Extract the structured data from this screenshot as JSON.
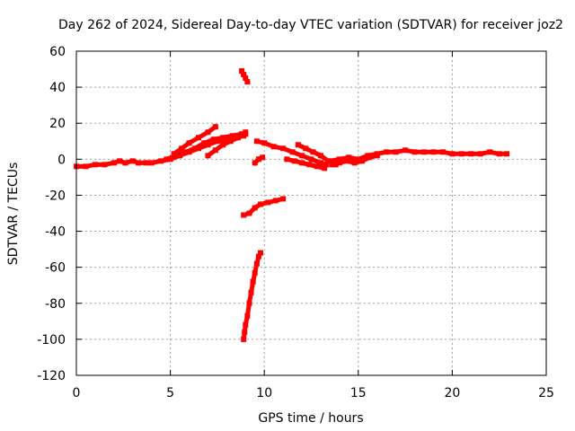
{
  "chart_data": {
    "type": "scatter",
    "title": "Day 262 of 2024, Sidereal Day-to-day VTEC variation (SDTVAR) for receiver joz2",
    "xlabel": "GPS time / hours",
    "ylabel": "SDTVAR / TECUs",
    "xlim": [
      0,
      25
    ],
    "ylim": [
      -120,
      60
    ],
    "xticks": [
      0,
      5,
      10,
      15,
      20,
      25
    ],
    "yticks": [
      -120,
      -100,
      -80,
      -60,
      -40,
      -20,
      0,
      20,
      40,
      60
    ],
    "grid": true,
    "series_color": "#ff0000",
    "series": [
      {
        "name": "baseline-early",
        "points": [
          [
            0.0,
            -4
          ],
          [
            0.5,
            -4
          ],
          [
            1.0,
            -3
          ],
          [
            1.5,
            -3
          ],
          [
            2.0,
            -2
          ],
          [
            2.3,
            -1
          ],
          [
            2.6,
            -2
          ],
          [
            3.0,
            -1
          ],
          [
            3.3,
            -2
          ],
          [
            3.7,
            -2
          ],
          [
            4.0,
            -2
          ],
          [
            4.5,
            -1
          ],
          [
            5.0,
            0
          ],
          [
            5.5,
            2
          ],
          [
            6.0,
            4
          ],
          [
            6.5,
            6
          ],
          [
            7.0,
            8
          ],
          [
            7.5,
            10
          ],
          [
            8.0,
            11
          ],
          [
            8.5,
            12
          ],
          [
            8.9,
            13
          ]
        ]
      },
      {
        "name": "rising-arc-upper",
        "points": [
          [
            5.2,
            3
          ],
          [
            5.6,
            6
          ],
          [
            6.0,
            9
          ],
          [
            6.5,
            12
          ],
          [
            7.0,
            15
          ],
          [
            7.4,
            18
          ]
        ]
      },
      {
        "name": "rising-arc-mid",
        "points": [
          [
            4.8,
            0
          ],
          [
            5.3,
            2
          ],
          [
            5.8,
            4
          ],
          [
            6.3,
            6
          ],
          [
            6.8,
            9
          ],
          [
            7.3,
            11
          ],
          [
            7.8,
            12
          ],
          [
            8.3,
            13
          ],
          [
            8.8,
            14
          ],
          [
            9.0,
            15
          ]
        ]
      },
      {
        "name": "rising-arc-lower",
        "points": [
          [
            7.0,
            2
          ],
          [
            7.4,
            5
          ],
          [
            7.8,
            8
          ],
          [
            8.2,
            10
          ],
          [
            8.6,
            12
          ],
          [
            9.0,
            14
          ]
        ]
      },
      {
        "name": "high-segment",
        "points": [
          [
            8.8,
            49
          ],
          [
            8.9,
            47
          ],
          [
            9.0,
            45
          ],
          [
            9.1,
            43
          ]
        ]
      },
      {
        "name": "post-gap-decline",
        "points": [
          [
            9.6,
            10
          ],
          [
            10.0,
            9
          ],
          [
            10.5,
            7
          ],
          [
            11.0,
            6
          ],
          [
            11.5,
            4
          ],
          [
            12.0,
            2
          ],
          [
            12.5,
            0
          ],
          [
            13.0,
            -2
          ],
          [
            13.3,
            -3
          ]
        ]
      },
      {
        "name": "post-gap-lower",
        "points": [
          [
            11.2,
            0
          ],
          [
            11.6,
            -1
          ],
          [
            12.0,
            -2
          ],
          [
            12.4,
            -3
          ],
          [
            12.8,
            -4
          ],
          [
            13.2,
            -5
          ]
        ]
      },
      {
        "name": "midnight-cluster",
        "points": [
          [
            11.8,
            8
          ],
          [
            12.2,
            6
          ],
          [
            12.6,
            4
          ],
          [
            13.0,
            2
          ],
          [
            13.4,
            -1
          ],
          [
            13.8,
            -3
          ]
        ]
      },
      {
        "name": "small-positive-dash",
        "points": [
          [
            9.5,
            -2
          ],
          [
            9.7,
            0
          ],
          [
            9.9,
            1
          ]
        ]
      },
      {
        "name": "mid-negative-arc",
        "points": [
          [
            8.9,
            -31
          ],
          [
            9.2,
            -30
          ],
          [
            9.5,
            -27
          ],
          [
            9.8,
            -25
          ],
          [
            10.2,
            -24
          ],
          [
            10.6,
            -23
          ],
          [
            11.0,
            -22
          ]
        ]
      },
      {
        "name": "steep-negative-drop",
        "points": [
          [
            8.9,
            -100
          ],
          [
            8.95,
            -96
          ],
          [
            9.0,
            -92
          ],
          [
            9.1,
            -87
          ],
          [
            9.2,
            -80
          ],
          [
            9.3,
            -74
          ],
          [
            9.4,
            -68
          ],
          [
            9.5,
            -63
          ],
          [
            9.6,
            -58
          ],
          [
            9.7,
            -54
          ],
          [
            9.8,
            -52
          ]
        ]
      },
      {
        "name": "baseline-late",
        "points": [
          [
            13.5,
            -1
          ],
          [
            14.0,
            0
          ],
          [
            14.5,
            1
          ],
          [
            15.0,
            0
          ],
          [
            15.5,
            2
          ],
          [
            16.0,
            3
          ],
          [
            16.5,
            4
          ],
          [
            17.0,
            4
          ],
          [
            17.5,
            5
          ],
          [
            18.0,
            4
          ],
          [
            18.5,
            4
          ],
          [
            19.0,
            4
          ],
          [
            19.5,
            4
          ],
          [
            20.0,
            3
          ],
          [
            20.5,
            3
          ],
          [
            21.0,
            3
          ],
          [
            21.5,
            3
          ],
          [
            22.0,
            4
          ],
          [
            22.5,
            3
          ],
          [
            22.9,
            3
          ]
        ]
      },
      {
        "name": "baseline-late-lower",
        "points": [
          [
            13.6,
            -3
          ],
          [
            14.0,
            -2
          ],
          [
            14.4,
            -1
          ],
          [
            14.8,
            -2
          ],
          [
            15.2,
            -1
          ],
          [
            15.6,
            1
          ],
          [
            16.0,
            2
          ]
        ]
      }
    ]
  }
}
